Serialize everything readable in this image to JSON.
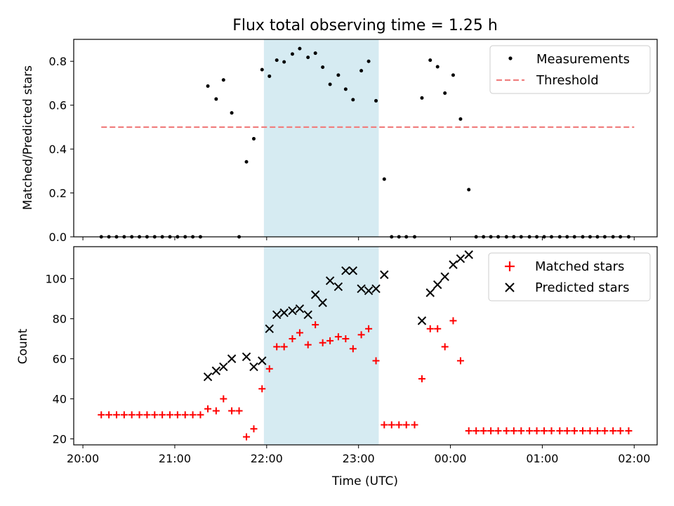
{
  "chart_data": {
    "title": "Flux total observing time = 1.25 h",
    "xlabel": "Time (UTC)",
    "x_unit": "hours after 20:00 UTC",
    "xlim": [
      -0.1,
      6.25
    ],
    "xticks": [
      {
        "value": 0,
        "label": "20:00"
      },
      {
        "value": 1,
        "label": "21:00"
      },
      {
        "value": 2,
        "label": "22:00"
      },
      {
        "value": 3,
        "label": "23:00"
      },
      {
        "value": 4,
        "label": "00:00"
      },
      {
        "value": 5,
        "label": "01:00"
      },
      {
        "value": 6,
        "label": "02:00"
      }
    ],
    "shaded_span": {
      "from": 1.97,
      "to": 3.22,
      "color": "#add8e6"
    },
    "top": {
      "type": "scatter",
      "ylabel": "Matched/Predicted stars",
      "ylim": [
        0,
        0.9
      ],
      "yticks": [
        "0.0",
        "0.2",
        "0.4",
        "0.6",
        "0.8"
      ],
      "legend_placement": "top-right",
      "series": [
        {
          "name": "Measurements",
          "color": "#000000",
          "marker": "dot",
          "points": [
            [
              0.2,
              0
            ],
            [
              0.283,
              0
            ],
            [
              0.366,
              0
            ],
            [
              0.449,
              0
            ],
            [
              0.532,
              0
            ],
            [
              0.615,
              0
            ],
            [
              0.698,
              0
            ],
            [
              0.781,
              0
            ],
            [
              0.864,
              0
            ],
            [
              0.947,
              0
            ],
            [
              1.03,
              0
            ],
            [
              1.113,
              0
            ],
            [
              1.196,
              0
            ],
            [
              1.279,
              0
            ],
            [
              1.36,
              0.687
            ],
            [
              1.45,
              0.628
            ],
            [
              1.53,
              0.715
            ],
            [
              1.62,
              0.565
            ],
            [
              1.7,
              0
            ],
            [
              1.78,
              0.342
            ],
            [
              1.86,
              0.447
            ],
            [
              1.95,
              0.762
            ],
            [
              2.03,
              0.732
            ],
            [
              2.11,
              0.805
            ],
            [
              2.19,
              0.797
            ],
            [
              2.28,
              0.833
            ],
            [
              2.36,
              0.858
            ],
            [
              2.45,
              0.818
            ],
            [
              2.53,
              0.837
            ],
            [
              2.61,
              0.773
            ],
            [
              2.69,
              0.695
            ],
            [
              2.78,
              0.737
            ],
            [
              2.86,
              0.673
            ],
            [
              2.94,
              0.625
            ],
            [
              3.03,
              0.757
            ],
            [
              3.11,
              0.8
            ],
            [
              3.19,
              0.62
            ],
            [
              3.28,
              0.263
            ],
            [
              3.36,
              0
            ],
            [
              3.44,
              0
            ],
            [
              3.52,
              0
            ],
            [
              3.61,
              0
            ],
            [
              3.69,
              0.633
            ],
            [
              3.78,
              0.805
            ],
            [
              3.86,
              0.775
            ],
            [
              3.94,
              0.655
            ],
            [
              4.03,
              0.737
            ],
            [
              4.11,
              0.537
            ],
            [
              4.2,
              0.215
            ],
            [
              4.28,
              0
            ],
            [
              4.36,
              0
            ],
            [
              4.44,
              0
            ],
            [
              4.52,
              0
            ],
            [
              4.61,
              0
            ],
            [
              4.69,
              0
            ],
            [
              4.77,
              0
            ],
            [
              4.86,
              0
            ],
            [
              4.94,
              0
            ],
            [
              5.02,
              0
            ],
            [
              5.1,
              0
            ],
            [
              5.19,
              0
            ],
            [
              5.27,
              0
            ],
            [
              5.35,
              0
            ],
            [
              5.44,
              0
            ],
            [
              5.52,
              0
            ],
            [
              5.6,
              0
            ],
            [
              5.68,
              0
            ],
            [
              5.77,
              0
            ],
            [
              5.85,
              0
            ],
            [
              5.94,
              0
            ]
          ]
        },
        {
          "name": "Threshold",
          "color": "#f08080",
          "style": "dashed",
          "points": [
            [
              0.2,
              0.5
            ],
            [
              6.0,
              0.5
            ]
          ]
        }
      ]
    },
    "bottom": {
      "type": "scatter",
      "ylabel": "Count",
      "ylim": [
        17,
        116
      ],
      "yticks": [
        "20",
        "40",
        "60",
        "80",
        "100"
      ],
      "legend_placement": "top-right",
      "series": [
        {
          "name": "Matched stars",
          "color": "#ff0000",
          "marker": "plus",
          "points": [
            [
              0.2,
              32
            ],
            [
              0.283,
              32
            ],
            [
              0.366,
              32
            ],
            [
              0.449,
              32
            ],
            [
              0.532,
              32
            ],
            [
              0.615,
              32
            ],
            [
              0.698,
              32
            ],
            [
              0.781,
              32
            ],
            [
              0.864,
              32
            ],
            [
              0.947,
              32
            ],
            [
              1.03,
              32
            ],
            [
              1.113,
              32
            ],
            [
              1.196,
              32
            ],
            [
              1.279,
              32
            ],
            [
              1.36,
              35
            ],
            [
              1.45,
              34
            ],
            [
              1.53,
              40
            ],
            [
              1.62,
              34
            ],
            [
              1.7,
              34
            ],
            [
              1.78,
              21
            ],
            [
              1.86,
              25
            ],
            [
              1.95,
              45
            ],
            [
              2.03,
              55
            ],
            [
              2.11,
              66
            ],
            [
              2.19,
              66
            ],
            [
              2.28,
              70
            ],
            [
              2.36,
              73
            ],
            [
              2.45,
              67
            ],
            [
              2.53,
              77
            ],
            [
              2.61,
              68
            ],
            [
              2.69,
              69
            ],
            [
              2.78,
              71
            ],
            [
              2.86,
              70
            ],
            [
              2.94,
              65
            ],
            [
              3.03,
              72
            ],
            [
              3.11,
              75
            ],
            [
              3.19,
              59
            ],
            [
              3.28,
              27
            ],
            [
              3.36,
              27
            ],
            [
              3.44,
              27
            ],
            [
              3.52,
              27
            ],
            [
              3.61,
              27
            ],
            [
              3.69,
              50
            ],
            [
              3.78,
              75
            ],
            [
              3.86,
              75
            ],
            [
              3.94,
              66
            ],
            [
              4.03,
              79
            ],
            [
              4.11,
              59
            ],
            [
              4.2,
              24
            ],
            [
              4.28,
              24
            ],
            [
              4.36,
              24
            ],
            [
              4.44,
              24
            ],
            [
              4.52,
              24
            ],
            [
              4.61,
              24
            ],
            [
              4.69,
              24
            ],
            [
              4.77,
              24
            ],
            [
              4.86,
              24
            ],
            [
              4.94,
              24
            ],
            [
              5.02,
              24
            ],
            [
              5.1,
              24
            ],
            [
              5.19,
              24
            ],
            [
              5.27,
              24
            ],
            [
              5.35,
              24
            ],
            [
              5.44,
              24
            ],
            [
              5.52,
              24
            ],
            [
              5.6,
              24
            ],
            [
              5.68,
              24
            ],
            [
              5.77,
              24
            ],
            [
              5.85,
              24
            ],
            [
              5.94,
              24
            ]
          ]
        },
        {
          "name": "Predicted stars",
          "color": "#000000",
          "marker": "x",
          "points": [
            [
              1.36,
              51
            ],
            [
              1.45,
              54
            ],
            [
              1.53,
              56
            ],
            [
              1.62,
              60
            ],
            [
              1.78,
              61
            ],
            [
              1.86,
              56
            ],
            [
              1.95,
              59
            ],
            [
              2.03,
              75
            ],
            [
              2.11,
              82
            ],
            [
              2.19,
              83
            ],
            [
              2.28,
              84
            ],
            [
              2.36,
              85
            ],
            [
              2.45,
              82
            ],
            [
              2.53,
              92
            ],
            [
              2.61,
              88
            ],
            [
              2.69,
              99
            ],
            [
              2.78,
              96
            ],
            [
              2.86,
              104
            ],
            [
              2.94,
              104
            ],
            [
              3.03,
              95
            ],
            [
              3.11,
              94
            ],
            [
              3.19,
              95
            ],
            [
              3.28,
              102
            ],
            [
              3.69,
              79
            ],
            [
              3.78,
              93
            ],
            [
              3.86,
              97
            ],
            [
              3.94,
              101
            ],
            [
              4.03,
              107
            ],
            [
              4.11,
              110
            ],
            [
              4.2,
              112
            ]
          ]
        }
      ]
    }
  }
}
